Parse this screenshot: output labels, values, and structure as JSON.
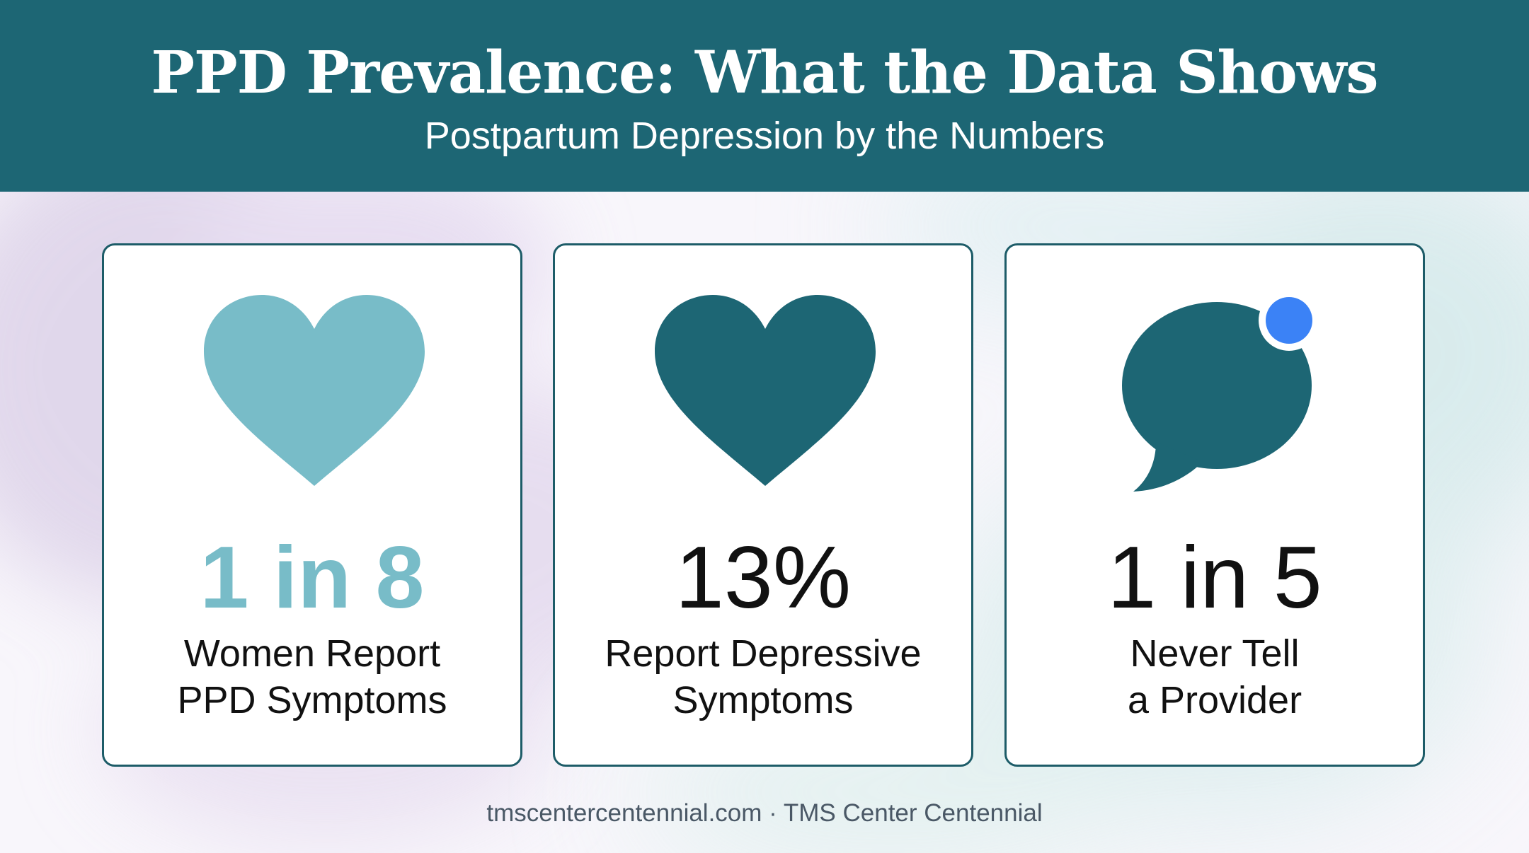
{
  "header": {
    "title": "PPD Prevalence: What the Data Shows",
    "subtitle": "Postpartum Depression by the Numbers"
  },
  "cards": [
    {
      "icon": "heart-icon",
      "icon_color": "#78bcc8",
      "stat": "1 in 8",
      "label_lines": [
        "Women Report",
        "PPD Symptoms"
      ]
    },
    {
      "icon": "heart-icon",
      "icon_color": "#1d6674",
      "stat": "13%",
      "label_lines": [
        "Report Depressive",
        "Symptoms"
      ]
    },
    {
      "icon": "speech-bubble-notification-icon",
      "icon_color": "#1d6674",
      "dot_color": "#3b82f6",
      "stat": "1 in 5",
      "label_lines": [
        "Never Tell",
        "a Provider"
      ]
    }
  ],
  "footer": {
    "text": "tmscentercentennial.com · TMS Center Centennial"
  },
  "colors": {
    "header_bg": "#1d6674",
    "card_border": "#1d5c68",
    "accent_light_teal": "#78bcc8",
    "background_wash_lavender": "#d9cde6",
    "background_wash_mint": "#cfe8e8"
  }
}
